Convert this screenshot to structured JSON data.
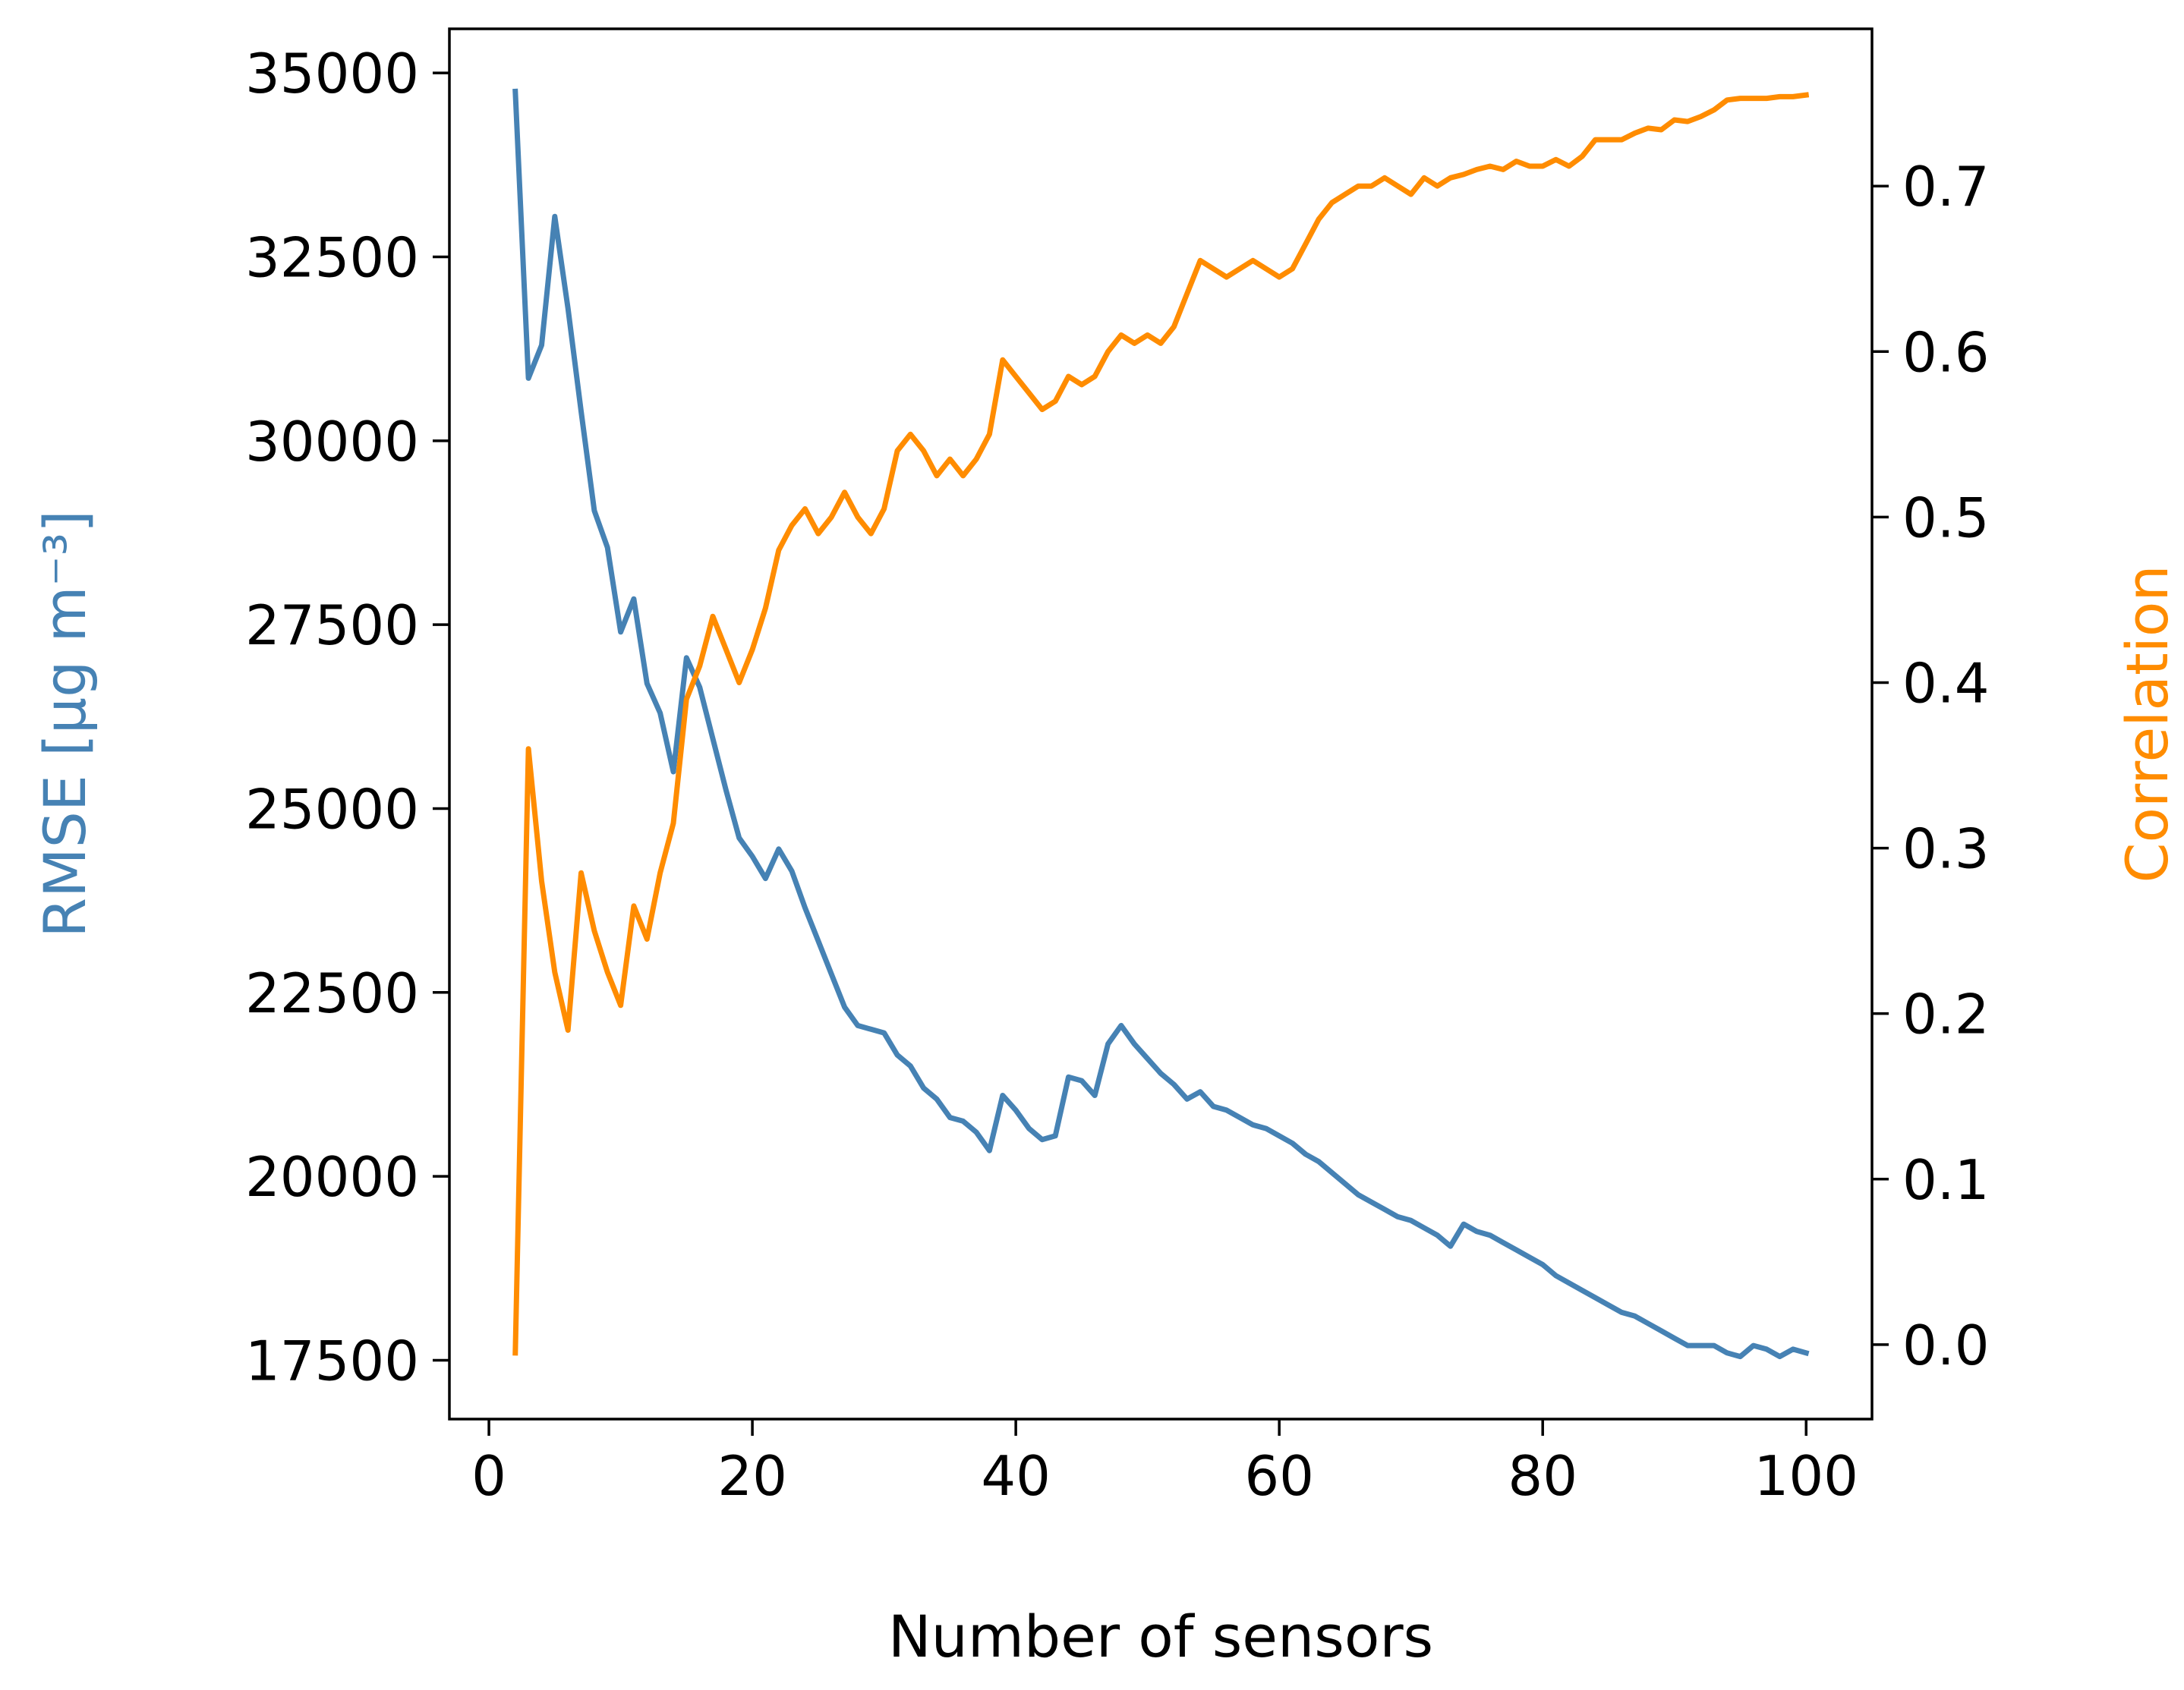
{
  "chart_data": {
    "type": "line",
    "xlabel": "Number of sensors",
    "ylabel_left": "RMSE [μg m⁻³]",
    "ylabel_right": "Correlation",
    "xlim": [
      -3,
      105
    ],
    "xticks": [
      0,
      20,
      40,
      60,
      80,
      100
    ],
    "ylim_left": [
      16700,
      35600
    ],
    "yticks_left": [
      17500,
      20000,
      22500,
      25000,
      27500,
      30000,
      32500,
      35000
    ],
    "ylim_right": [
      -0.045,
      0.795
    ],
    "yticks_right": [
      0.0,
      0.1,
      0.2,
      0.3,
      0.4,
      0.5,
      0.6,
      0.7
    ],
    "colors": {
      "rmse": "#4682b4",
      "correlation": "#ff8c00"
    },
    "x": [
      2,
      3,
      4,
      5,
      6,
      7,
      8,
      9,
      10,
      11,
      12,
      13,
      14,
      15,
      16,
      17,
      18,
      19,
      20,
      21,
      22,
      23,
      24,
      25,
      26,
      27,
      28,
      29,
      30,
      31,
      32,
      33,
      34,
      35,
      36,
      37,
      38,
      39,
      40,
      41,
      42,
      43,
      44,
      45,
      46,
      47,
      48,
      49,
      50,
      51,
      52,
      53,
      54,
      55,
      56,
      57,
      58,
      59,
      60,
      61,
      62,
      63,
      64,
      65,
      66,
      67,
      68,
      69,
      70,
      71,
      72,
      73,
      74,
      75,
      76,
      77,
      78,
      79,
      80,
      81,
      82,
      83,
      84,
      85,
      86,
      87,
      88,
      89,
      90,
      91,
      92,
      93,
      94,
      95,
      96,
      97,
      98,
      99,
      100
    ],
    "series": [
      {
        "name": "RMSE",
        "axis": "left",
        "values": [
          34750,
          30850,
          31300,
          33050,
          31800,
          30400,
          29050,
          28550,
          27400,
          27850,
          26700,
          26300,
          25500,
          27050,
          26650,
          25950,
          25250,
          24600,
          24350,
          24050,
          24450,
          24150,
          23650,
          23200,
          22750,
          22300,
          22050,
          22000,
          21950,
          21650,
          21500,
          21200,
          21050,
          20800,
          20750,
          20600,
          20350,
          21100,
          20900,
          20650,
          20500,
          20550,
          21350,
          21300,
          21100,
          21800,
          22050,
          21800,
          21600,
          21400,
          21250,
          21050,
          21150,
          20950,
          20900,
          20800,
          20700,
          20650,
          20550,
          20450,
          20300,
          20200,
          20050,
          19900,
          19750,
          19650,
          19550,
          19450,
          19400,
          19300,
          19200,
          19050,
          19350,
          19250,
          19200,
          19100,
          19000,
          18900,
          18800,
          18650,
          18550,
          18450,
          18350,
          18250,
          18150,
          18100,
          18000,
          17900,
          17800,
          17700,
          17700,
          17700,
          17600,
          17550,
          17700,
          17650,
          17550,
          17650,
          17600
        ]
      },
      {
        "name": "Correlation",
        "axis": "right",
        "values": [
          -0.005,
          0.36,
          0.28,
          0.225,
          0.19,
          0.285,
          0.25,
          0.225,
          0.205,
          0.265,
          0.245,
          0.285,
          0.315,
          0.39,
          0.41,
          0.44,
          0.42,
          0.4,
          0.42,
          0.445,
          0.48,
          0.495,
          0.505,
          0.49,
          0.5,
          0.515,
          0.5,
          0.49,
          0.505,
          0.54,
          0.55,
          0.54,
          0.525,
          0.535,
          0.525,
          0.535,
          0.55,
          0.595,
          0.585,
          0.575,
          0.565,
          0.57,
          0.585,
          0.58,
          0.585,
          0.6,
          0.61,
          0.605,
          0.61,
          0.605,
          0.615,
          0.635,
          0.655,
          0.65,
          0.645,
          0.65,
          0.655,
          0.65,
          0.645,
          0.65,
          0.665,
          0.68,
          0.69,
          0.695,
          0.7,
          0.7,
          0.705,
          0.7,
          0.695,
          0.705,
          0.7,
          0.705,
          0.707,
          0.71,
          0.712,
          0.71,
          0.715,
          0.712,
          0.712,
          0.716,
          0.712,
          0.718,
          0.728,
          0.728,
          0.728,
          0.732,
          0.735,
          0.734,
          0.74,
          0.739,
          0.742,
          0.746,
          0.752,
          0.753,
          0.753,
          0.753,
          0.754,
          0.754,
          0.755
        ]
      }
    ]
  }
}
